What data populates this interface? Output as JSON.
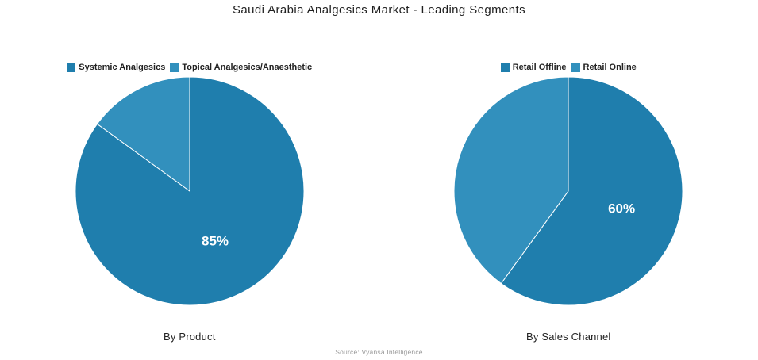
{
  "title": "Saudi Arabia Analgesics Market - Leading Segments",
  "source": "Source: Vyansa Intelligence",
  "colors": {
    "slice_primary": "#1f7ead",
    "slice_secondary": "#3290bd",
    "slice_label_text": "#ffffff",
    "legend_text": "#222222",
    "title_text": "#1f1f1f",
    "source_text": "#9a9a9a",
    "background": "#ffffff"
  },
  "chart_data": [
    {
      "type": "pie",
      "title": "By Product",
      "labels": [
        "Systemic Analgesics",
        "Topical Analgesics/Anaesthetic"
      ],
      "values": [
        85,
        15
      ],
      "colors": [
        "#1f7ead",
        "#3290bd"
      ],
      "slice_labels": [
        "85%",
        ""
      ],
      "start_angle_deg": 0,
      "direction": "clockwise",
      "legend_position": "top",
      "label_radius_fraction": 0.49
    },
    {
      "type": "pie",
      "title": "By Sales Channel",
      "labels": [
        "Retail Offline",
        "Retail Online"
      ],
      "values": [
        60,
        40
      ],
      "colors": [
        "#1f7ead",
        "#3290bd"
      ],
      "slice_labels": [
        "60%",
        ""
      ],
      "start_angle_deg": 0,
      "direction": "clockwise",
      "legend_position": "top",
      "label_radius_fraction": 0.49
    }
  ]
}
